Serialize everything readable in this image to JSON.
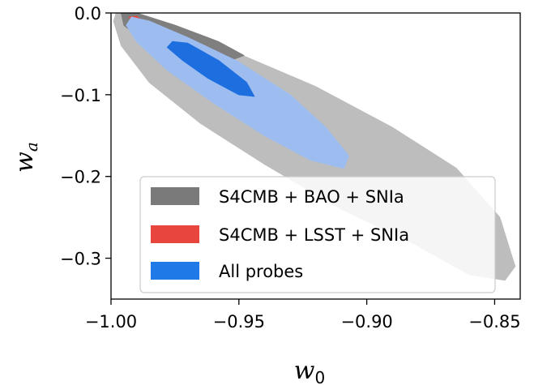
{
  "chart_data": {
    "type": "contour",
    "xlabel": "w",
    "xlabel_sub": "0",
    "ylabel": "w",
    "ylabel_sub": "a",
    "xlim": [
      -1.0,
      -0.84
    ],
    "ylim": [
      -0.35,
      0.0
    ],
    "x_ticks": [
      -1.0,
      -0.95,
      -0.9,
      -0.85
    ],
    "x_tick_labels": [
      "−1.00",
      "−0.95",
      "−0.90",
      "−0.85"
    ],
    "y_ticks": [
      0.0,
      -0.1,
      -0.2,
      -0.3
    ],
    "y_tick_labels": [
      "0.0",
      "−0.1",
      "−0.2",
      "−0.3"
    ],
    "grid": false,
    "legend_position": "bottom-right",
    "series": [
      {
        "name": "S4CMB + BAO + SNIa",
        "color": "#737373",
        "regions": [
          {
            "level": "95%",
            "fill": "#bdbdbd",
            "points": [
              [
                -0.998,
                0.0
              ],
              [
                -0.992,
                0.0
              ],
              [
                -0.975,
                -0.02
              ],
              [
                -0.95,
                -0.05
              ],
              [
                -0.92,
                -0.09
              ],
              [
                -0.89,
                -0.14
              ],
              [
                -0.865,
                -0.19
              ],
              [
                -0.848,
                -0.25
              ],
              [
                -0.842,
                -0.31
              ],
              [
                -0.846,
                -0.327
              ],
              [
                -0.86,
                -0.32
              ],
              [
                -0.88,
                -0.285
              ],
              [
                -0.91,
                -0.24
              ],
              [
                -0.94,
                -0.185
              ],
              [
                -0.965,
                -0.135
              ],
              [
                -0.985,
                -0.085
              ],
              [
                -0.996,
                -0.04
              ],
              [
                -0.999,
                -0.01
              ]
            ]
          },
          {
            "level": "68%",
            "fill": "#7f7f7f",
            "points": [
              [
                -0.996,
                0.0
              ],
              [
                -0.99,
                0.0
              ],
              [
                -0.975,
                -0.015
              ],
              [
                -0.958,
                -0.035
              ],
              [
                -0.948,
                -0.052
              ],
              [
                -0.955,
                -0.06
              ],
              [
                -0.97,
                -0.058
              ],
              [
                -0.985,
                -0.04
              ],
              [
                -0.995,
                -0.015
              ]
            ]
          }
        ]
      },
      {
        "name": "S4CMB + LSST + SNIa",
        "color": "#e8453c",
        "regions": [
          {
            "level": "95%",
            "fill": "#e8453c",
            "points": [
              [
                -0.993,
                -0.005
              ],
              [
                -0.99,
                -0.004
              ],
              [
                -0.988,
                -0.009
              ],
              [
                -0.991,
                -0.012
              ]
            ]
          }
        ]
      },
      {
        "name": "All probes",
        "color": "#1f7ae8",
        "regions": [
          {
            "level": "95%",
            "fill": "#9dbdf0",
            "points": [
              [
                -0.992,
                -0.005
              ],
              [
                -0.985,
                -0.01
              ],
              [
                -0.97,
                -0.03
              ],
              [
                -0.95,
                -0.06
              ],
              [
                -0.93,
                -0.1
              ],
              [
                -0.916,
                -0.14
              ],
              [
                -0.907,
                -0.175
              ],
              [
                -0.909,
                -0.19
              ],
              [
                -0.922,
                -0.18
              ],
              [
                -0.94,
                -0.15
              ],
              [
                -0.96,
                -0.11
              ],
              [
                -0.978,
                -0.07
              ],
              [
                -0.99,
                -0.035
              ],
              [
                -0.994,
                -0.015
              ]
            ]
          },
          {
            "level": "68%",
            "fill": "#1d6fe0",
            "points": [
              [
                -0.976,
                -0.035
              ],
              [
                -0.97,
                -0.037
              ],
              [
                -0.958,
                -0.058
              ],
              [
                -0.947,
                -0.085
              ],
              [
                -0.944,
                -0.102
              ],
              [
                -0.95,
                -0.1
              ],
              [
                -0.962,
                -0.08
              ],
              [
                -0.972,
                -0.058
              ],
              [
                -0.978,
                -0.042
              ]
            ]
          }
        ]
      }
    ]
  },
  "legend": {
    "items": [
      {
        "label": "S4CMB + BAO + SNIa",
        "color": "#7a7a7a"
      },
      {
        "label": "S4CMB + LSST + SNIa",
        "color": "#e8453c"
      },
      {
        "label": "All probes",
        "color": "#1f7ae8"
      }
    ]
  }
}
